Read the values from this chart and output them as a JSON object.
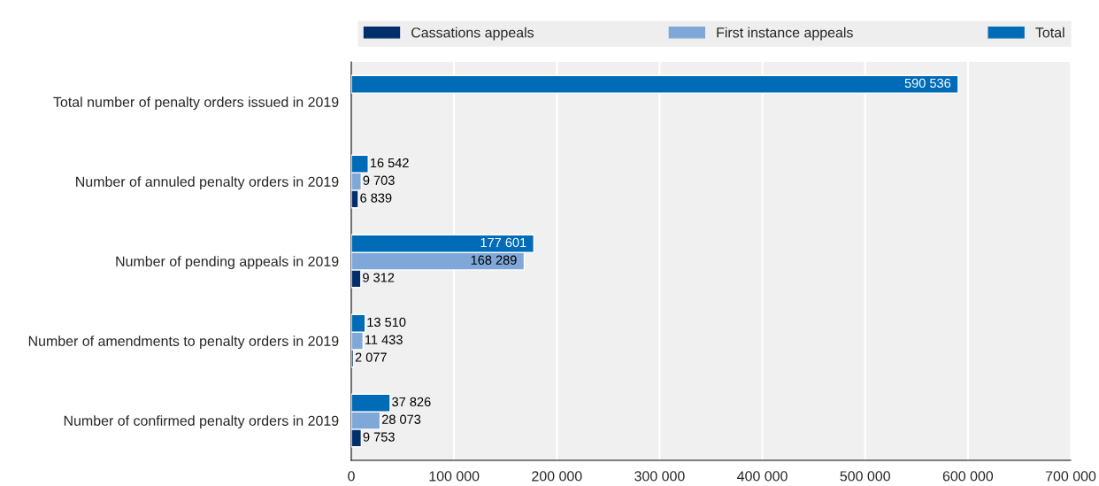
{
  "chart_data": {
    "type": "bar",
    "orientation": "horizontal",
    "categories": [
      "Total number of penalty orders issued in 2019",
      "Number of annuled penalty orders in 2019",
      "Number of pending appeals in 2019",
      "Number of amendments to penalty orders in 2019",
      "Number of confirmed penalty orders in 2019"
    ],
    "series": [
      {
        "name": "Cassations appeals",
        "color": "#002f6c",
        "values": [
          null,
          6839,
          9312,
          2077,
          9753
        ],
        "value_labels": [
          null,
          "6 839",
          "9 312",
          "2 077",
          "9 753"
        ]
      },
      {
        "name": "First instance appeals",
        "color": "#7fa8d9",
        "values": [
          null,
          9703,
          168289,
          11433,
          28073
        ],
        "value_labels": [
          null,
          "9 703",
          "168 289",
          "11 433",
          "28 073"
        ]
      },
      {
        "name": "Total",
        "color": "#006bb6",
        "values": [
          590536,
          16542,
          177601,
          13510,
          37826
        ],
        "value_labels": [
          "590 536",
          "16 542",
          "177 601",
          "13 510",
          "37 826"
        ]
      }
    ],
    "xlim": [
      0,
      700000
    ],
    "xticks": [
      {
        "value": 0,
        "label": "0"
      },
      {
        "value": 100000,
        "label": "100 000"
      },
      {
        "value": 200000,
        "label": "200 000"
      },
      {
        "value": 300000,
        "label": "300 000"
      },
      {
        "value": 400000,
        "label": "400 000"
      },
      {
        "value": 500000,
        "label": "500 000"
      },
      {
        "value": 600000,
        "label": "600 000"
      },
      {
        "value": 700000,
        "label": "700 000"
      }
    ],
    "grid": "x",
    "legend": "top"
  }
}
